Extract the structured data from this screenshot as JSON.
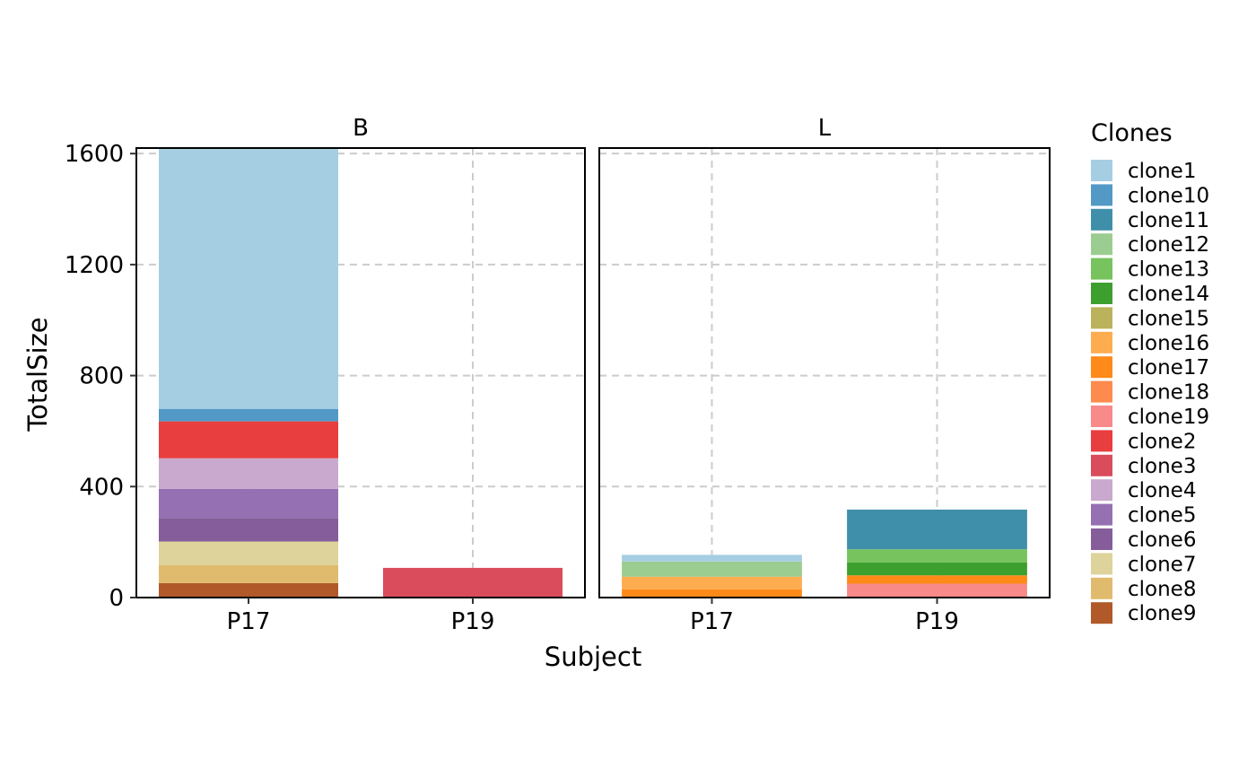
{
  "chart_data": {
    "type": "bar",
    "stacked": true,
    "facets": [
      "B",
      "L"
    ],
    "categories": [
      "P17",
      "P19"
    ],
    "xlabel": "Subject",
    "ylabel": "TotalSize",
    "ylim": [
      0,
      1620
    ],
    "y_ticks": [
      0,
      400,
      800,
      1200,
      1600
    ],
    "grid": true,
    "legend_title": "Clones",
    "legend_position": "right",
    "series": [
      {
        "name": "clone1",
        "color": "#A6CEE3",
        "values": {
          "B": [
            944,
            0
          ],
          "L": [
            24,
            0
          ]
        }
      },
      {
        "name": "clone10",
        "color": "#5299C6",
        "values": {
          "B": [
            45,
            0
          ],
          "L": [
            0,
            0
          ]
        }
      },
      {
        "name": "clone11",
        "color": "#3F8FAA",
        "values": {
          "B": [
            0,
            0
          ],
          "L": [
            0,
            143
          ]
        }
      },
      {
        "name": "clone12",
        "color": "#9BCD90",
        "values": {
          "B": [
            0,
            0
          ],
          "L": [
            55,
            0
          ]
        }
      },
      {
        "name": "clone13",
        "color": "#77C35E",
        "values": {
          "B": [
            0,
            0
          ],
          "L": [
            0,
            47
          ]
        }
      },
      {
        "name": "clone14",
        "color": "#3DA02E",
        "values": {
          "B": [
            0,
            0
          ],
          "L": [
            0,
            47
          ]
        }
      },
      {
        "name": "clone15",
        "color": "#BBB35C",
        "values": {
          "B": [
            0,
            0
          ],
          "L": [
            0,
            0
          ]
        }
      },
      {
        "name": "clone16",
        "color": "#FDAC4F",
        "values": {
          "B": [
            0,
            0
          ],
          "L": [
            45,
            0
          ]
        }
      },
      {
        "name": "clone17",
        "color": "#FE8A19",
        "values": {
          "B": [
            0,
            0
          ],
          "L": [
            30,
            30
          ]
        }
      },
      {
        "name": "clone18",
        "color": "#FE8B4E",
        "values": {
          "B": [
            0,
            0
          ],
          "L": [
            0,
            0
          ]
        }
      },
      {
        "name": "clone19",
        "color": "#F88A89",
        "values": {
          "B": [
            0,
            0
          ],
          "L": [
            0,
            50
          ]
        }
      },
      {
        "name": "clone2",
        "color": "#E83E3F",
        "values": {
          "B": [
            133,
            0
          ],
          "L": [
            0,
            0
          ]
        }
      },
      {
        "name": "clone3",
        "color": "#DA4C5C",
        "values": {
          "B": [
            0,
            107
          ],
          "L": [
            0,
            0
          ]
        }
      },
      {
        "name": "clone4",
        "color": "#C9A9CE",
        "values": {
          "B": [
            110,
            0
          ],
          "L": [
            0,
            0
          ]
        }
      },
      {
        "name": "clone5",
        "color": "#9570B3",
        "values": {
          "B": [
            105,
            0
          ],
          "L": [
            0,
            0
          ]
        }
      },
      {
        "name": "clone6",
        "color": "#855D9A",
        "values": {
          "B": [
            85,
            0
          ],
          "L": [
            0,
            0
          ]
        }
      },
      {
        "name": "clone7",
        "color": "#DDD39B",
        "values": {
          "B": [
            85,
            0
          ],
          "L": [
            0,
            0
          ]
        }
      },
      {
        "name": "clone8",
        "color": "#E0BB6E",
        "values": {
          "B": [
            65,
            0
          ],
          "L": [
            0,
            0
          ]
        }
      },
      {
        "name": "clone9",
        "color": "#B15928",
        "values": {
          "B": [
            52,
            0
          ],
          "L": [
            0,
            0
          ]
        }
      }
    ]
  }
}
